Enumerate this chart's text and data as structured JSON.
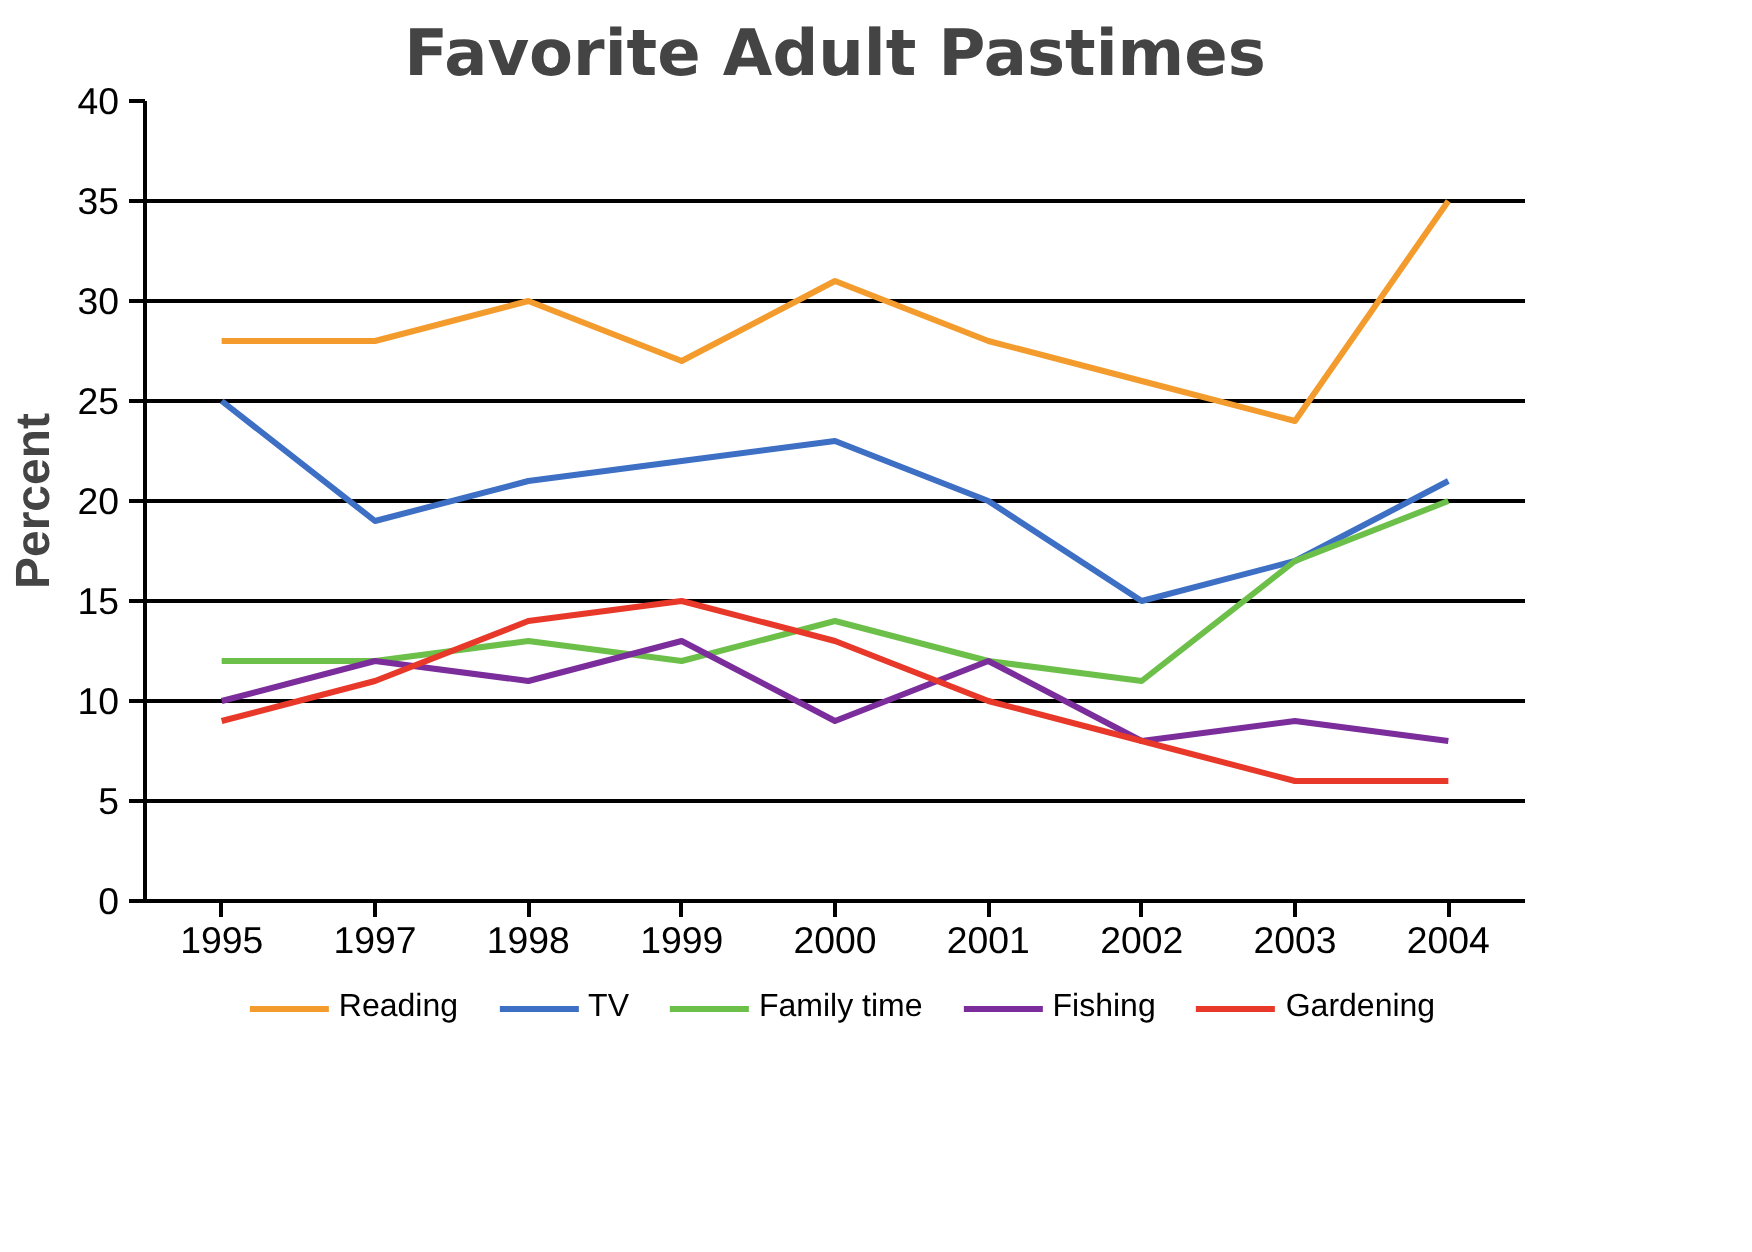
{
  "chart_data": {
    "type": "line",
    "title": "Favorite Adult Pastimes",
    "ylabel": "Percent",
    "categories": [
      "1995",
      "1997",
      "1998",
      "1999",
      "2000",
      "2001",
      "2002",
      "2003",
      "2004"
    ],
    "series": [
      {
        "name": "Reading",
        "color": "#f39c2d",
        "values": [
          28,
          28,
          30,
          27,
          31,
          28,
          26,
          24,
          35
        ]
      },
      {
        "name": "TV",
        "color": "#3d6fc4",
        "values": [
          25,
          19,
          21,
          22,
          23,
          20,
          15,
          17,
          21
        ]
      },
      {
        "name": "Family time",
        "color": "#6cc04a",
        "values": [
          12,
          12,
          13,
          12,
          14,
          12,
          11,
          17,
          20
        ]
      },
      {
        "name": "Fishing",
        "color": "#7b2d9b",
        "values": [
          10,
          12,
          11,
          13,
          9,
          12,
          8,
          9,
          8
        ]
      },
      {
        "name": "Gardening",
        "color": "#e8382a",
        "values": [
          9,
          11,
          14,
          15,
          13,
          10,
          8,
          6,
          6
        ]
      }
    ],
    "ylim": [
      0,
      40
    ],
    "yticks": [
      0,
      5,
      10,
      15,
      20,
      25,
      30,
      35,
      40
    ],
    "grid": "y",
    "legend": "bottom",
    "marker": "none",
    "line_style": "solid"
  }
}
